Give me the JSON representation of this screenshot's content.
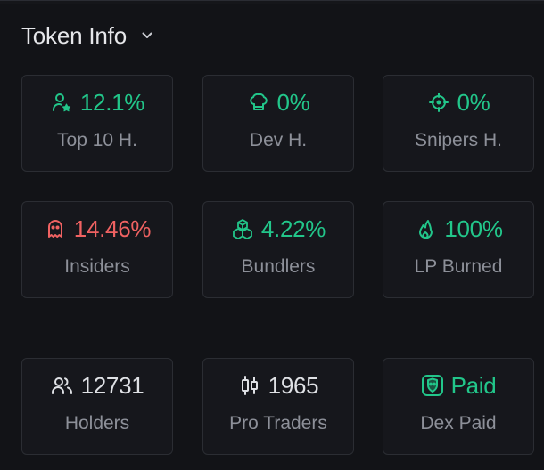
{
  "header": {
    "title": "Token Info",
    "chevron_icon": "chevron-down-icon"
  },
  "colors": {
    "background": "#121317",
    "card_border": "#2b2d33",
    "green": "#22c68a",
    "red": "#f06262",
    "label": "#8d9099"
  },
  "cards": {
    "top10": {
      "value": "12.1%",
      "label": "Top 10 H.",
      "icon": "user-star-icon",
      "color": "green"
    },
    "dev": {
      "value": "0%",
      "label": "Dev H.",
      "icon": "chef-hat-icon",
      "color": "green"
    },
    "snipers": {
      "value": "0%",
      "label": "Snipers H.",
      "icon": "crosshair-icon",
      "color": "green"
    },
    "insiders": {
      "value": "14.46%",
      "label": "Insiders",
      "icon": "ghost-icon",
      "color": "red"
    },
    "bundlers": {
      "value": "4.22%",
      "label": "Bundlers",
      "icon": "boxes-icon",
      "color": "green"
    },
    "lp_burned": {
      "value": "100%",
      "label": "LP Burned",
      "icon": "flame-icon",
      "color": "green"
    },
    "holders": {
      "value": "12731",
      "label": "Holders",
      "icon": "users-icon",
      "color": "white"
    },
    "pro_traders": {
      "value": "1965",
      "label": "Pro Traders",
      "icon": "candlestick-icon",
      "color": "white"
    },
    "dex_paid": {
      "value": "Paid",
      "label": "Dex Paid",
      "icon": "dex-shield-icon",
      "color": "green"
    }
  }
}
